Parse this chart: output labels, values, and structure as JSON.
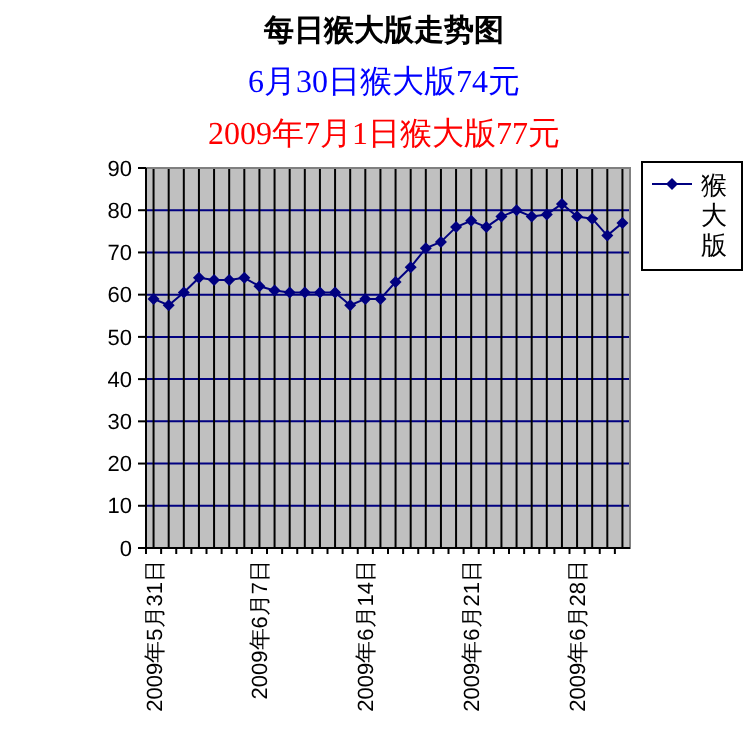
{
  "chart_data": {
    "type": "line",
    "title": "每日猴大版走势图",
    "subtitle": "6月30日猴大版74元",
    "annotations": [
      "2009年7月1日猴大版77元"
    ],
    "categories": [
      "2009年5月31日",
      null,
      null,
      null,
      null,
      null,
      null,
      "2009年6月7日",
      null,
      null,
      null,
      null,
      null,
      null,
      "2009年6月14日",
      null,
      null,
      null,
      null,
      null,
      null,
      "2009年6月21日",
      null,
      null,
      null,
      null,
      null,
      null,
      "2009年6月28日",
      null,
      null,
      null
    ],
    "series": [
      {
        "name": "猴大版",
        "color": "#000080",
        "values": [
          59,
          57.5,
          60.5,
          64,
          63.5,
          63.5,
          64,
          62,
          61,
          60.5,
          60.5,
          60.5,
          60.5,
          57.5,
          59,
          59,
          63,
          66.5,
          71,
          72.5,
          76,
          77.5,
          76,
          78.5,
          80,
          78.5,
          79,
          81.5,
          78.5,
          78,
          74,
          77
        ]
      }
    ],
    "ylim": [
      0,
      90
    ],
    "yticks": [
      0,
      10,
      20,
      30,
      40,
      50,
      60,
      70,
      80,
      90
    ],
    "grid": true,
    "legend": "right",
    "marker": "diamond",
    "line_style": "solid"
  }
}
